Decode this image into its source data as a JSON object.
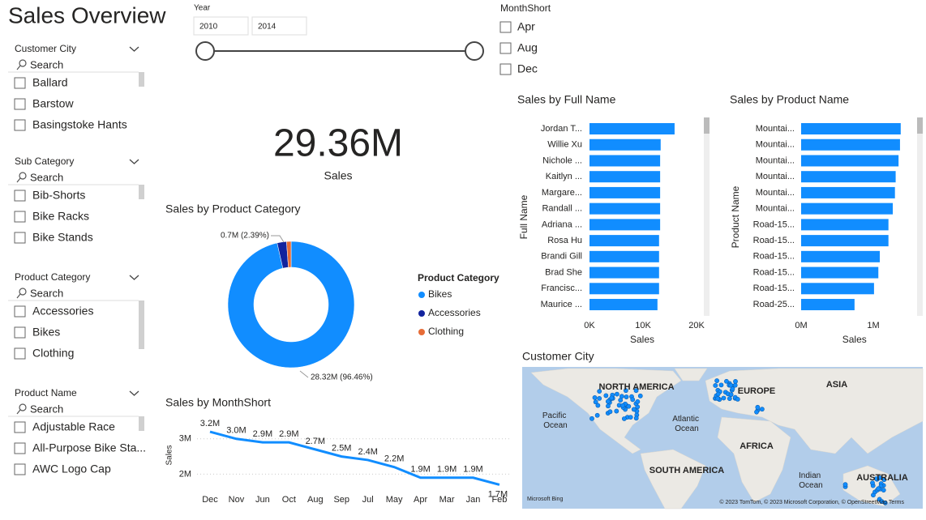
{
  "page_title": "Sales Overview",
  "year_slicer": {
    "title": "Year",
    "from": "2010",
    "to": "2014"
  },
  "month_slicer": {
    "title": "MonthShort",
    "items": [
      "Apr",
      "Aug",
      "Dec"
    ]
  },
  "slicers": [
    {
      "title": "Customer City",
      "search": "Search",
      "items": [
        "Ballard",
        "Barstow",
        "Basingstoke Hants"
      ]
    },
    {
      "title": "Sub Category",
      "search": "Search",
      "items": [
        "Bib-Shorts",
        "Bike Racks",
        "Bike Stands"
      ]
    },
    {
      "title": "Product Category",
      "search": "Search",
      "items": [
        "Accessories",
        "Bikes",
        "Clothing"
      ]
    },
    {
      "title": "Product Name",
      "search": "Search",
      "items": [
        "Adjustable Race",
        "All-Purpose Bike Sta...",
        "AWC Logo Cap"
      ]
    }
  ],
  "card": {
    "value": "29.36M",
    "label": "Sales"
  },
  "chart_data": [
    {
      "type": "pie",
      "donut": true,
      "title": "Sales by Product Category",
      "categories": [
        "Bikes",
        "Accessories",
        "Clothing"
      ],
      "values": [
        28.32,
        0.7,
        0.34
      ],
      "value_labels": [
        "28.32M (96.46%)",
        "0.7M (2.39%)",
        null
      ],
      "colors": [
        "#118DFF",
        "#12239E",
        "#E66C37"
      ],
      "legend_title": "Product Category"
    },
    {
      "type": "line",
      "title": "Sales by MonthShort",
      "categories": [
        "Dec",
        "Nov",
        "Jun",
        "Oct",
        "Aug",
        "Sep",
        "Jul",
        "May",
        "Apr",
        "Mar",
        "Jan",
        "Feb"
      ],
      "values": [
        3.2,
        3.0,
        2.9,
        2.9,
        2.7,
        2.5,
        2.4,
        2.2,
        1.9,
        1.9,
        1.9,
        1.7
      ],
      "value_labels": [
        "3.2M",
        "3.0M",
        "2.9M",
        "2.9M",
        "2.7M",
        "2.5M",
        "2.4M",
        "2.2M",
        "1.9M",
        "1.9M",
        "1.9M",
        "1.7M"
      ],
      "color": "#118DFF",
      "ylabel": "Sales",
      "ylim": [
        1.55,
        3.5
      ],
      "yticks": [
        {
          "value": 2,
          "label": "2M"
        },
        {
          "value": 3,
          "label": "3M"
        }
      ],
      "grid": true
    },
    {
      "type": "barh",
      "title": "Sales by Full Name",
      "categories": [
        "Jordan T...",
        "Willie Xu",
        "Nichole ...",
        "Kaitlyn ...",
        "Margare...",
        "Randall ...",
        "Adriana ...",
        "Rosa Hu",
        "Brandi Gill",
        "Brad She",
        "Francisc...",
        "Maurice ..."
      ],
      "values": [
        15900,
        13300,
        13200,
        13200,
        13200,
        13200,
        13200,
        13000,
        13000,
        13000,
        13000,
        12700
      ],
      "color": "#118DFF",
      "xlabel": "Sales",
      "ylabel": "Full Name",
      "xlim": [
        0,
        20000
      ],
      "xticks": [
        {
          "value": 0,
          "label": "0K"
        },
        {
          "value": 10000,
          "label": "10K"
        },
        {
          "value": 20000,
          "label": "20K"
        }
      ]
    },
    {
      "type": "barh",
      "title": "Sales by Product Name",
      "categories": [
        "Mountai...",
        "Mountai...",
        "Mountai...",
        "Mountai...",
        "Mountai...",
        "Mountai...",
        "Road-15...",
        "Road-15...",
        "Road-15...",
        "Road-15...",
        "Road-15...",
        "Road-25..."
      ],
      "values": [
        1380000,
        1370000,
        1350000,
        1310000,
        1300000,
        1270000,
        1210000,
        1210000,
        1090000,
        1070000,
        1010000,
        740000
      ],
      "color": "#118DFF",
      "xlabel": "Sales",
      "ylabel": "Product Name",
      "xlim": [
        0,
        1500000
      ],
      "xticks": [
        {
          "value": 0,
          "label": "0M"
        },
        {
          "value": 1000000,
          "label": "1M"
        }
      ]
    }
  ],
  "map": {
    "title": "Customer City",
    "labels": [
      "NORTH AMERICA",
      "EUROPE",
      "ASIA",
      "Pacific Ocean",
      "Atlantic Ocean",
      "AFRICA",
      "SOUTH AMERICA",
      "Indian Ocean",
      "AUSTRALIA"
    ],
    "provider": "Microsoft Bing",
    "attribution": "© 2023 TomTom, © 2023 Microsoft Corporation, © OpenStreetMap Terms"
  }
}
